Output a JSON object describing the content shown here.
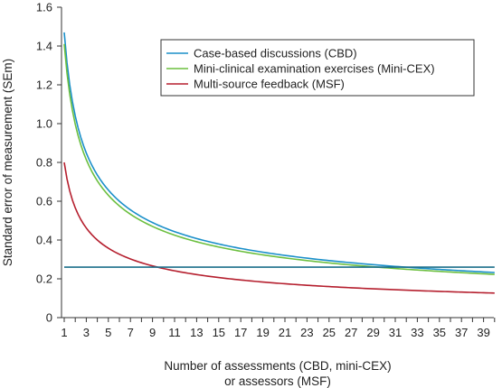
{
  "chart_data": {
    "type": "line",
    "title": "",
    "xlabel_lines": [
      "Number of assessments (CBD, mini-CEX)",
      "or assessors (MSF)"
    ],
    "ylabel": "Standard error of measurement (SEm)",
    "xlim": [
      1,
      40
    ],
    "ylim": [
      0,
      1.6
    ],
    "x_ticks": [
      1,
      3,
      5,
      7,
      9,
      11,
      13,
      15,
      17,
      19,
      21,
      23,
      25,
      27,
      29,
      31,
      33,
      35,
      37,
      39
    ],
    "y_ticks": [
      0,
      0.2,
      0.4,
      0.6,
      0.8,
      1.0,
      1.2,
      1.4,
      1.6
    ],
    "y_tick_labels": [
      "0",
      "0.2",
      "0.4",
      "0.6",
      "0.8",
      "1.0",
      "1.2",
      "1.4",
      "1.6"
    ],
    "grid": false,
    "legend_position": "top-right",
    "series": [
      {
        "name": "Case-based discussions (CBD)",
        "color": "#1a8fc9",
        "base": 1.47,
        "x_start": 1,
        "x_end": 40
      },
      {
        "name": "Mini-clinical examination exercises (Mini-CEX)",
        "color": "#6cbf3f",
        "base": 1.41,
        "x_start": 1,
        "x_end": 40
      },
      {
        "name": "Multi-source feedback (MSF)",
        "color": "#b51f2e",
        "base": 0.8,
        "x_start": 1,
        "x_end": 40
      }
    ],
    "reference_line": {
      "y": 0.26,
      "x_start": 1,
      "x_end": 40,
      "color": "#1a6f8a"
    }
  }
}
